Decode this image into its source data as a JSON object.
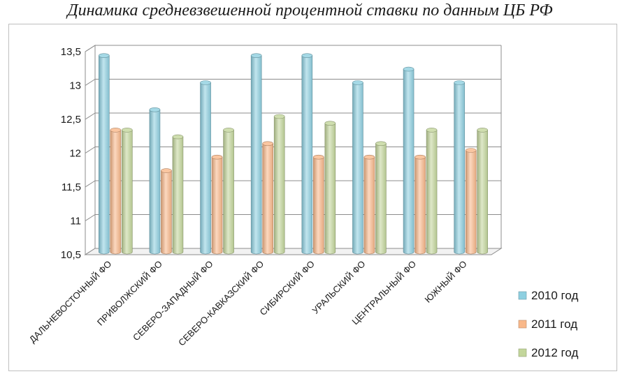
{
  "chart_data": {
    "type": "bar",
    "title": "Динамика средневзвешенной процентной ставки по данным ЦБ РФ",
    "categories": [
      "ДАЛЬНЕВОСТОЧНЫЙ ФО",
      "ПРИВОЛЖСКИЙ ФО",
      "СЕВЕРО-ЗАПАДНЫЙ ФО",
      "СЕВЕРО-КАВКАЗСКИЙ ФО",
      "СИБИРСКИЙ ФО",
      "УРАЛЬСКИЙ ФО",
      "ЦЕНТРАЛЬНЫЙ ФО",
      "ЮЖНЫЙ ФО"
    ],
    "series": [
      {
        "name": "2010 год",
        "color": "#8ecfe0",
        "values": [
          13.4,
          12.6,
          13.0,
          13.4,
          13.4,
          13.0,
          13.2,
          13.0
        ]
      },
      {
        "name": "2011 год",
        "color": "#f9b88a",
        "values": [
          12.3,
          11.7,
          11.9,
          12.1,
          11.9,
          11.9,
          11.9,
          12.0
        ]
      },
      {
        "name": "2012 год",
        "color": "#c3d69b",
        "values": [
          12.3,
          12.2,
          12.3,
          12.5,
          12.4,
          12.1,
          12.3,
          12.3
        ]
      }
    ],
    "ylim": [
      10.5,
      13.5
    ],
    "yticks": [
      "10,5",
      "11",
      "11,5",
      "12",
      "12,5",
      "13",
      "13,5"
    ],
    "xlabel": "",
    "ylabel": "",
    "grid": true,
    "legend": "right"
  }
}
